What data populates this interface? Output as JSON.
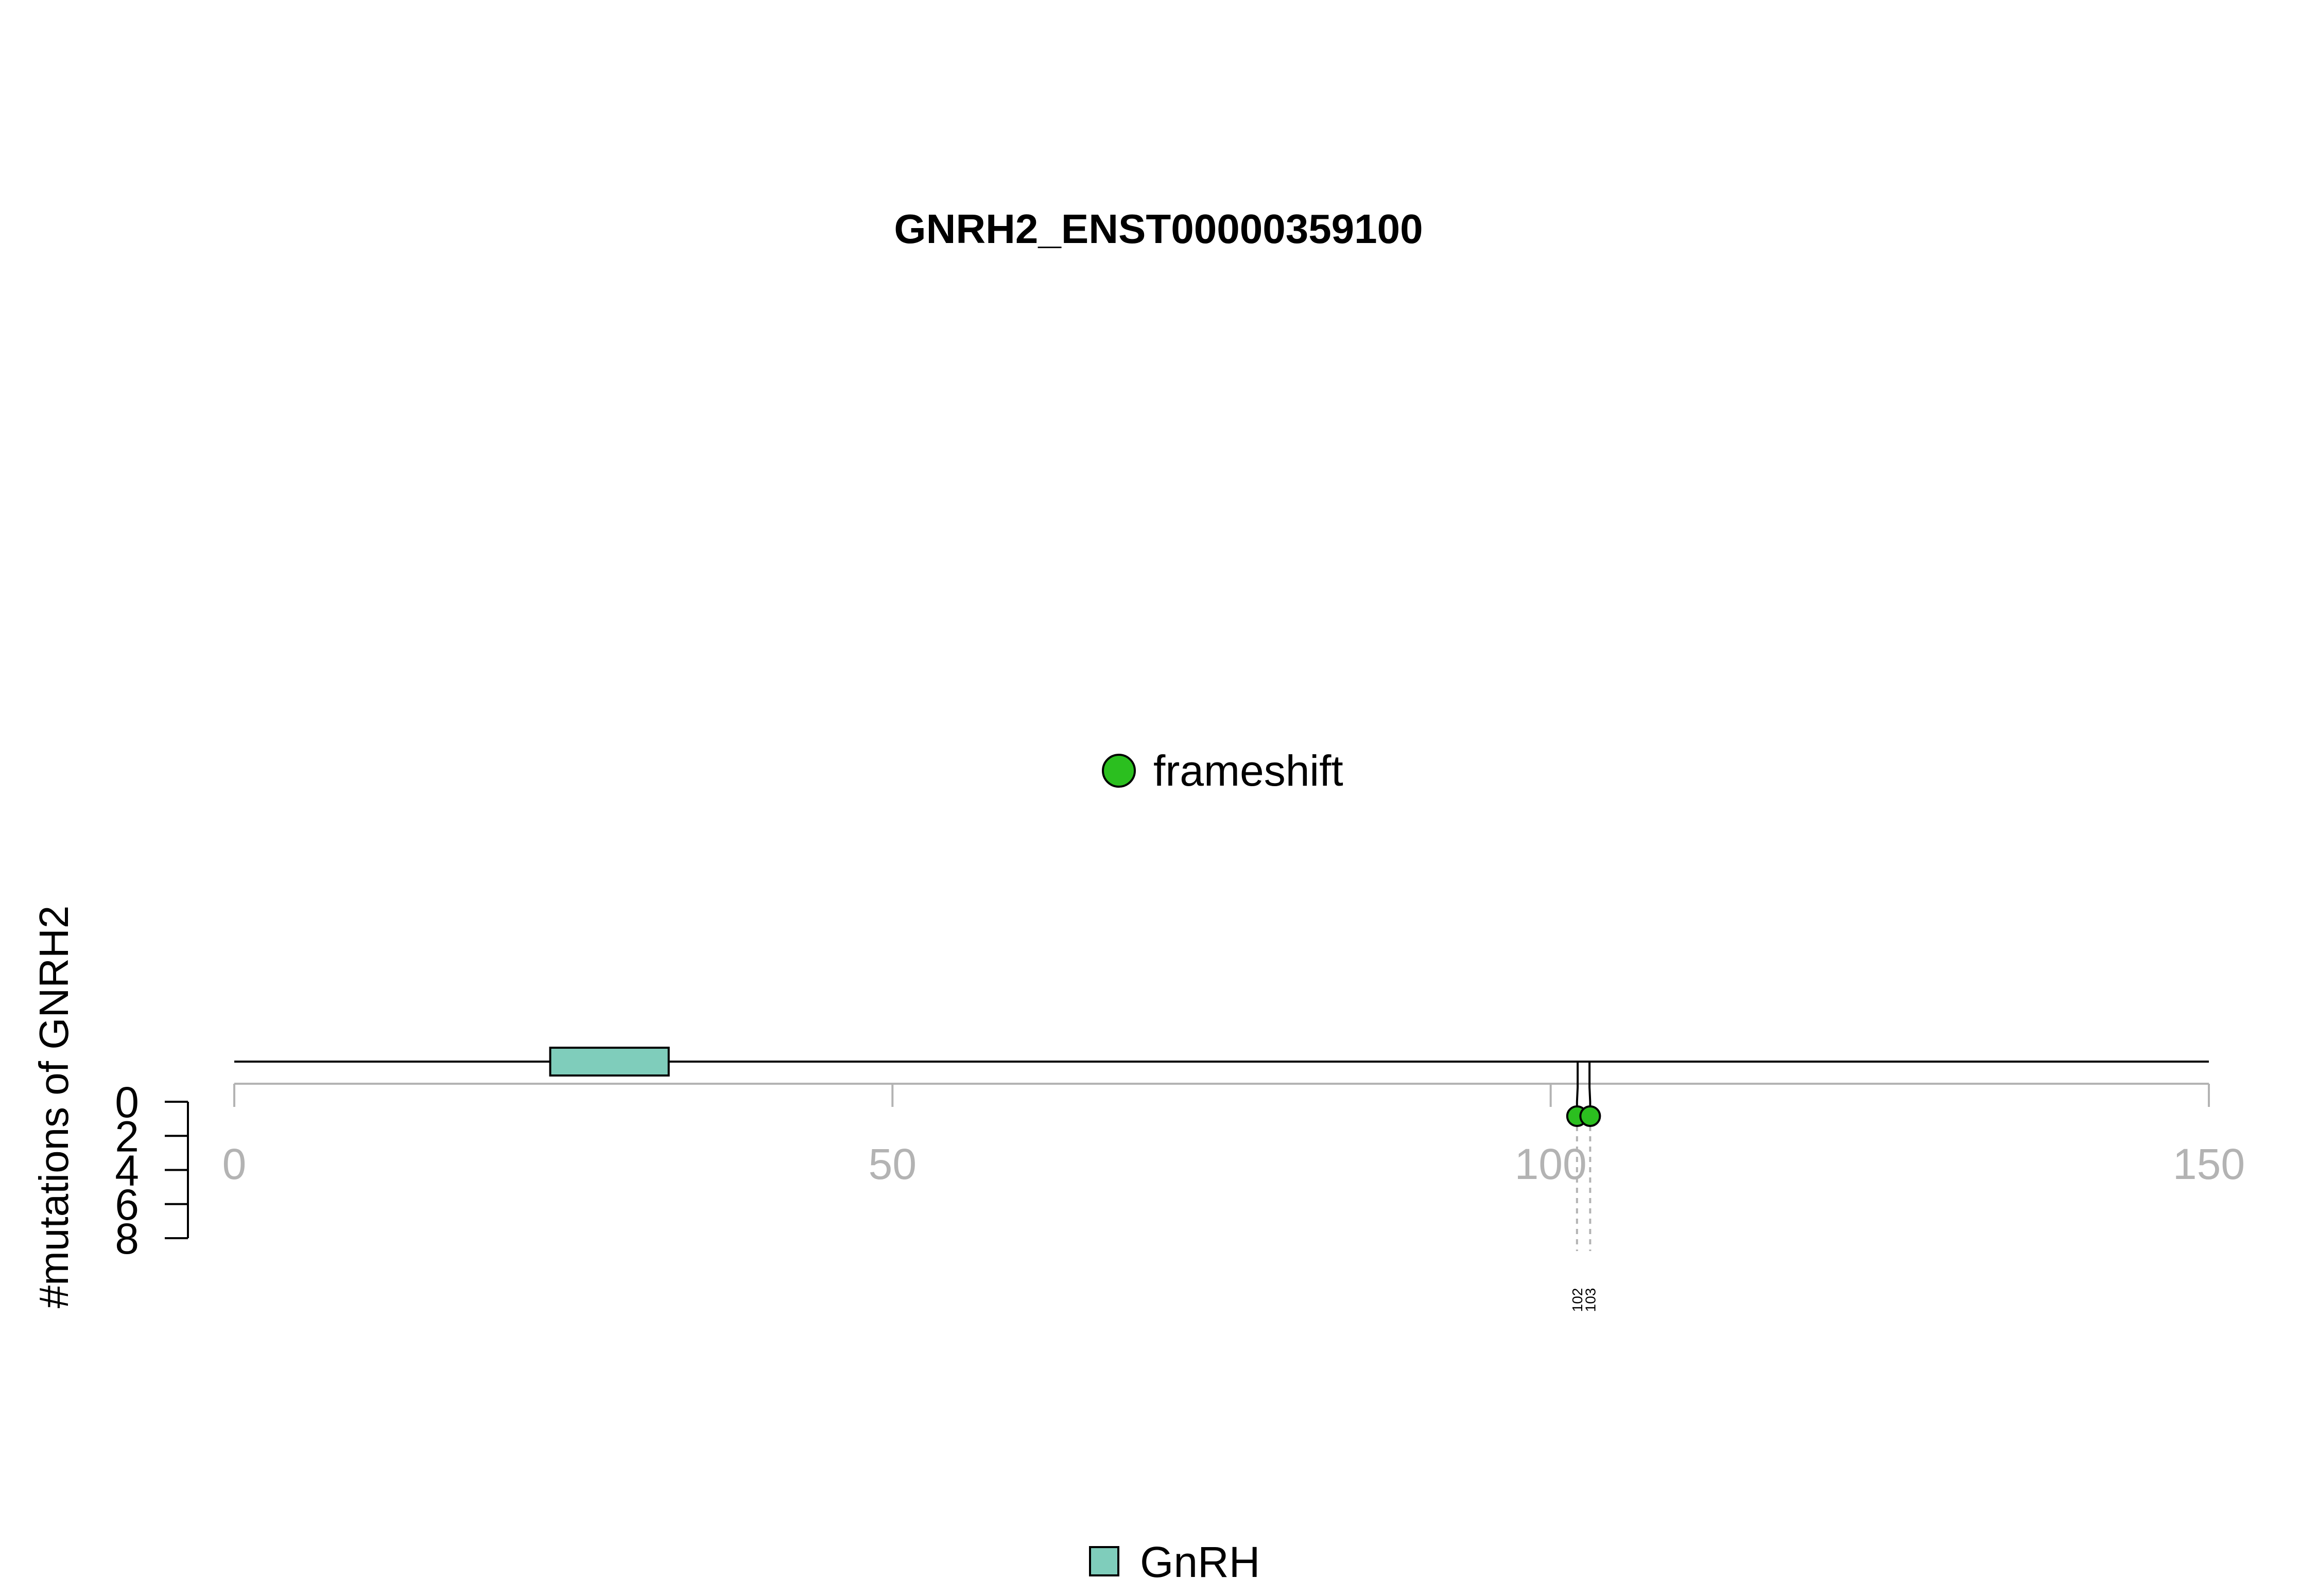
{
  "chart_data": {
    "type": "lollipop",
    "title": "GNRH2_ENST00000359100",
    "ylabel": "#mutations of GNRH2",
    "xlim": [
      0,
      150
    ],
    "x_ticks": [
      0,
      50,
      100,
      150
    ],
    "y_ticks": [
      0,
      2,
      4,
      6,
      8
    ],
    "ylim": [
      0,
      8
    ],
    "protein_length": 150,
    "domains": [
      {
        "name": "GnRH",
        "start": 24,
        "end": 33,
        "color": "#7fcdbb"
      }
    ],
    "mutation_types": [
      {
        "name": "frameshift",
        "color": "#2bbf1f"
      }
    ],
    "mutations": [
      {
        "position": 102,
        "count": 1,
        "type": "frameshift",
        "label": "102"
      },
      {
        "position": 103,
        "count": 1,
        "type": "frameshift",
        "label": "103"
      }
    ]
  }
}
